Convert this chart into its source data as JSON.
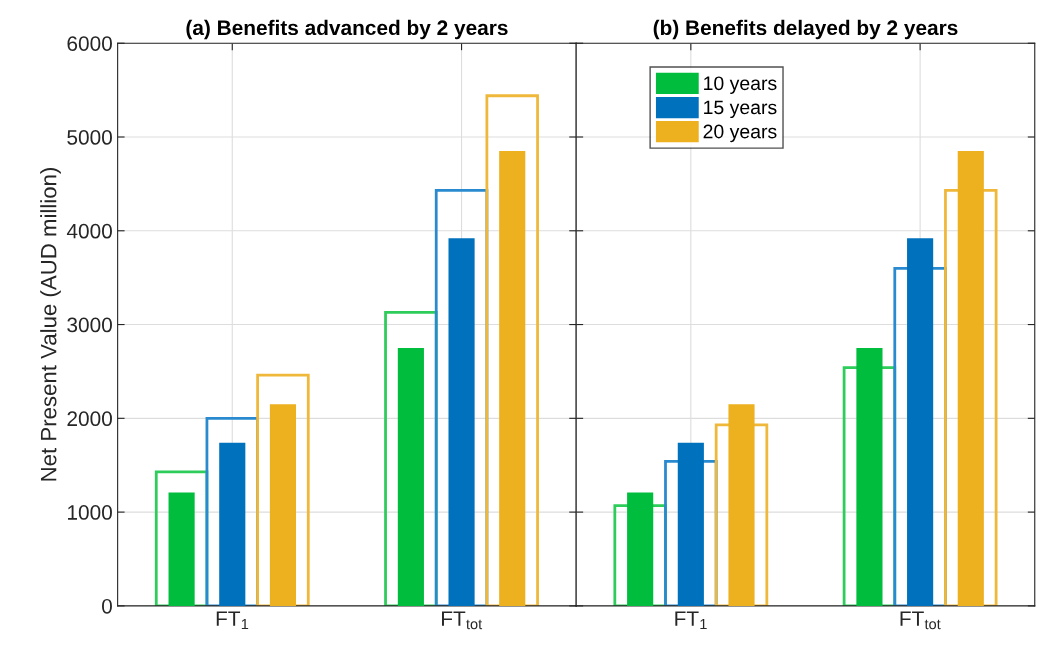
{
  "chart_data": [
    {
      "type": "bar",
      "title": "(a) Benefits advanced by 2 years",
      "ylabel": "Net Present Value (AUD million)",
      "categories": [
        "FT$_{1}$",
        "FT$_{tot}$"
      ],
      "series": [
        {
          "color": "#2ecc5a",
          "line_style": "solid",
          "values": [
            1430,
            3130
          ]
        },
        {
          "color": "#2a8ad0",
          "line_style": "solid",
          "values": [
            2000,
            4430
          ]
        },
        {
          "color": "#f0b83a",
          "line_style": "solid",
          "values": [
            2460,
            5440
          ]
        },
        {
          "color": "#00bd3d",
          "values": [
            1210,
            2750
          ]
        },
        {
          "color": "#0072bd",
          "values": [
            1740,
            3920
          ]
        },
        {
          "color": "#edb120",
          "values": [
            2150,
            4850
          ]
        }
      ],
      "ylim": [
        0,
        6000
      ],
      "yticks": [
        0,
        1000,
        2000,
        3000,
        4000,
        5000,
        6000
      ],
      "grid": true
    },
    {
      "type": "bar",
      "title": "(b) Benefits delayed by 2 years",
      "categories": [
        "FT$_{1}$",
        "FT$_{tot}$"
      ],
      "series": [
        {
          "color": "#2ecc5a",
          "line_style": "solid",
          "values": [
            1070,
            2540
          ]
        },
        {
          "color": "#2a8ad0",
          "line_style": "solid",
          "values": [
            1540,
            3600
          ]
        },
        {
          "color": "#f0b83a",
          "line_style": "solid",
          "values": [
            1930,
            4430
          ]
        },
        {
          "name": "10 years",
          "color": "#00bd3d",
          "values": [
            1210,
            2750
          ]
        },
        {
          "name": "15 years",
          "color": "#0072bd",
          "values": [
            1740,
            3920
          ]
        },
        {
          "name": "20 years",
          "color": "#edb120",
          "values": [
            2150,
            4850
          ]
        }
      ],
      "ylim": [
        0,
        6000
      ],
      "yticks": [
        0,
        1000,
        2000,
        3000,
        4000,
        5000,
        6000
      ],
      "tick_labels": "x",
      "grid": true,
      "legend": "top left"
    }
  ]
}
